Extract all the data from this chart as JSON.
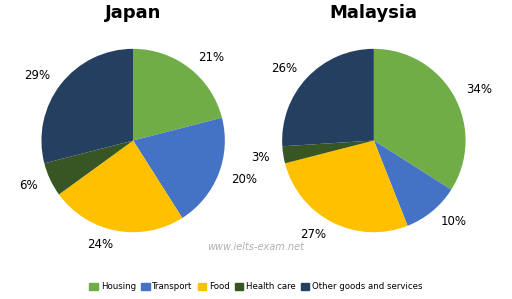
{
  "japan": {
    "title": "Japan",
    "values": [
      21,
      20,
      24,
      6,
      29
    ],
    "labels": [
      "21%",
      "20%",
      "24%",
      "6%",
      "29%"
    ],
    "startangle": 90
  },
  "malaysia": {
    "title": "Malaysia",
    "values": [
      34,
      10,
      27,
      3,
      26
    ],
    "labels": [
      "34%",
      "10%",
      "27%",
      "3%",
      "26%"
    ],
    "startangle": 90
  },
  "colors": [
    "#70ad47",
    "#4472c4",
    "#ffc000",
    "#375623",
    "#243f60"
  ],
  "legend_labels": [
    "Housing",
    "Transport",
    "Food",
    "Health care",
    "Other goods and services"
  ],
  "watermark": "www.ielts-exam.net",
  "title_fontsize": 13,
  "label_fontsize": 8.5,
  "background_color": "#ffffff"
}
